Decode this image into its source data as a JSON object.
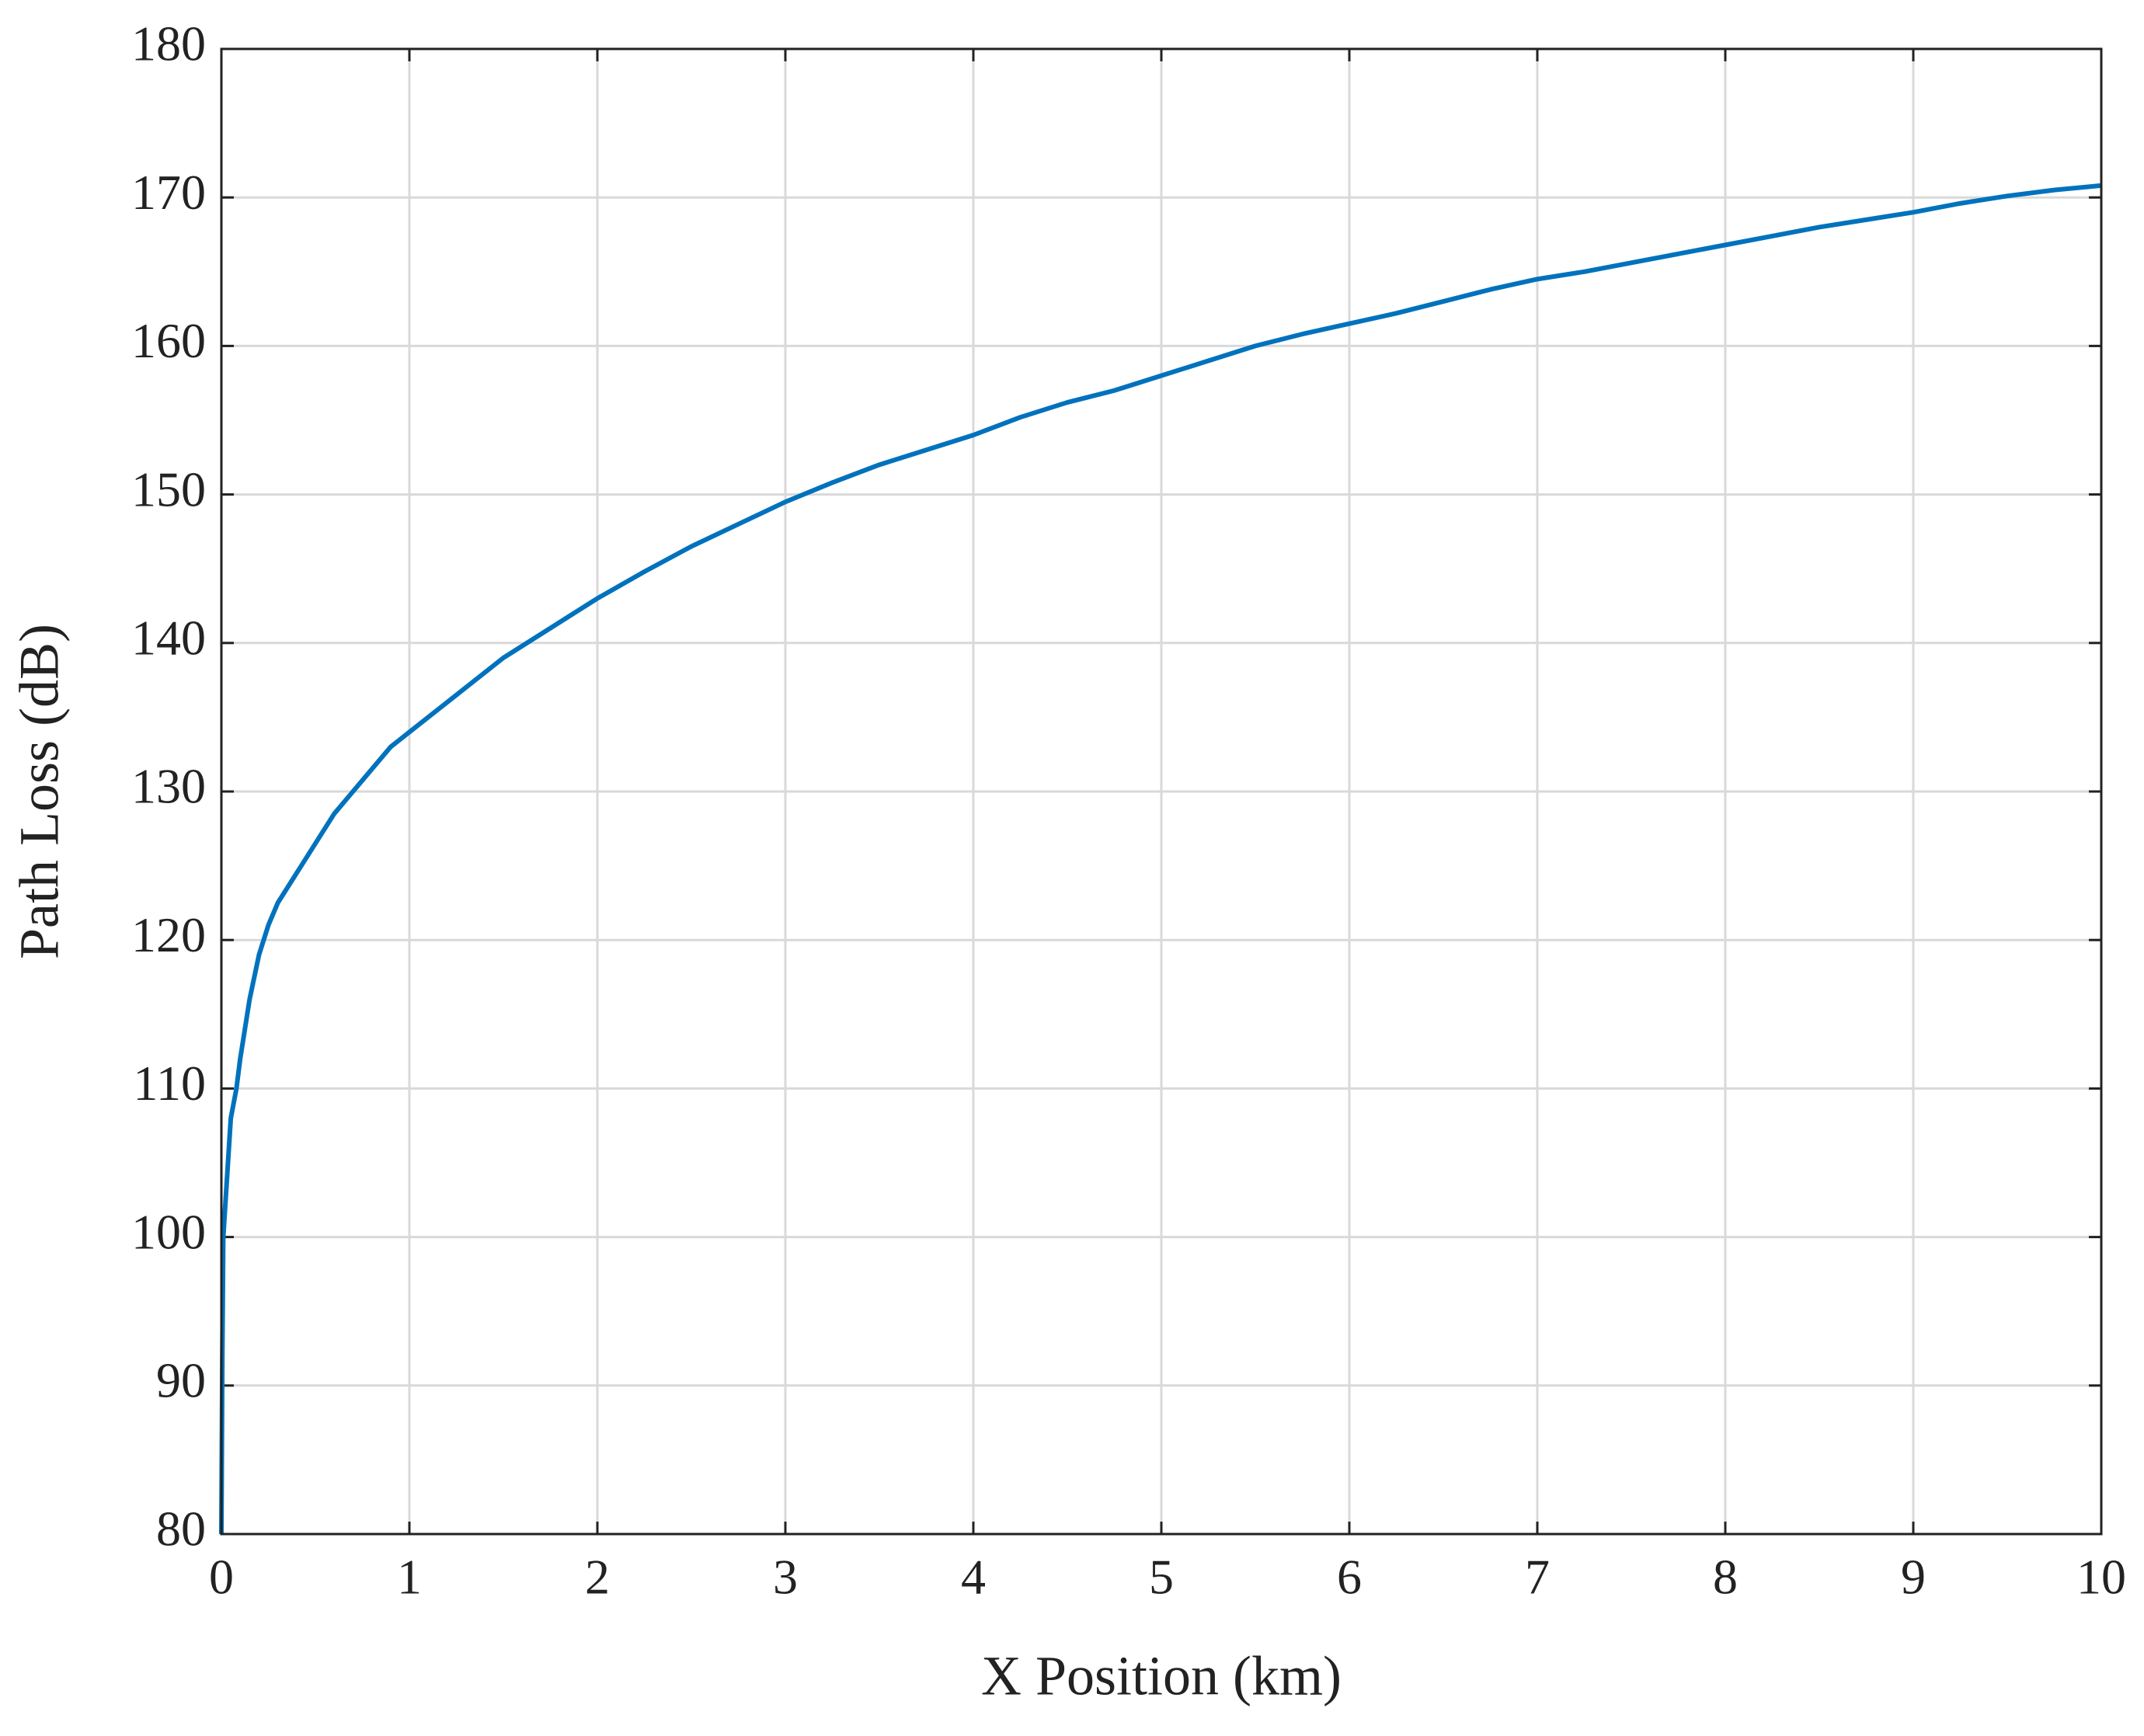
{
  "chart_data": {
    "type": "line",
    "xlabel": "X Position (km)",
    "ylabel": "Path Loss (dB)",
    "color": "#0072BD",
    "x": [
      0,
      0.005,
      0.01,
      0.03,
      0.05,
      0.08,
      0.1,
      0.15,
      0.2,
      0.25,
      0.3,
      0.4,
      0.5,
      0.6,
      0.7,
      0.8,
      0.9,
      1,
      1.25,
      1.5,
      1.75,
      2,
      2.25,
      2.5,
      2.75,
      3,
      3.25,
      3.5,
      3.75,
      4,
      4.25,
      4.5,
      4.75,
      5,
      5.25,
      5.5,
      5.75,
      6,
      6.25,
      6.5,
      6.75,
      7,
      7.25,
      7.5,
      7.75,
      8,
      8.25,
      8.5,
      8.75,
      9,
      9.25,
      9.5,
      9.75,
      10
    ],
    "values": [
      80,
      92,
      100,
      104,
      108,
      110,
      112,
      116,
      119,
      121,
      122.5,
      124.5,
      126.5,
      128.5,
      130,
      131.5,
      133,
      134,
      136.5,
      139,
      141,
      143,
      144.8,
      146.5,
      148,
      149.5,
      150.8,
      152,
      153,
      154,
      155.2,
      156.2,
      157,
      158,
      159,
      160,
      160.8,
      161.5,
      162.2,
      163,
      163.8,
      164.5,
      165,
      165.6,
      166.2,
      166.8,
      167.4,
      168,
      168.5,
      169,
      169.6,
      170.1,
      170.5,
      170.8
    ],
    "xlim": [
      0,
      10
    ],
    "ylim": [
      80,
      180
    ],
    "xticks": [
      0,
      1,
      2,
      3,
      4,
      5,
      6,
      7,
      8,
      9,
      10
    ],
    "yticks": [
      80,
      90,
      100,
      110,
      120,
      130,
      140,
      150,
      160,
      170,
      180
    ],
    "grid": true
  }
}
